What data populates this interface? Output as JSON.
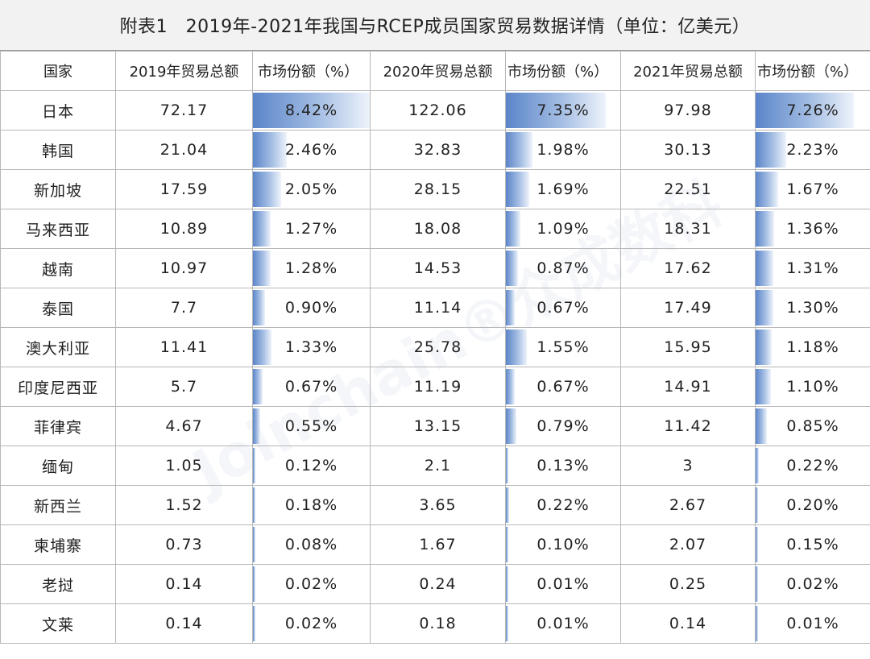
{
  "title": "附表1　2019年-2021年我国与RCEP成员国家贸易数据详情（单位：亿美元）",
  "headers": [
    "国家",
    "2019年贸易总额",
    "市场份额（%）",
    "2020年贸易总额",
    "市场份额（%）",
    "2021年贸易总额",
    "市场份额（%）"
  ],
  "bar_color": "#5b85c9",
  "watermark": "Joinchain®众成数科",
  "rows": [
    {
      "country": "日本",
      "v2019": "72.17",
      "s2019": "8.42%",
      "v2020": "122.06",
      "s2020": "7.35%",
      "v2021": "97.98",
      "s2021": "7.26%"
    },
    {
      "country": "韩国",
      "v2019": "21.04",
      "s2019": "2.46%",
      "v2020": "32.83",
      "s2020": "1.98%",
      "v2021": "30.13",
      "s2021": "2.23%"
    },
    {
      "country": "新加坡",
      "v2019": "17.59",
      "s2019": "2.05%",
      "v2020": "28.15",
      "s2020": "1.69%",
      "v2021": "22.51",
      "s2021": "1.67%"
    },
    {
      "country": "马来西亚",
      "v2019": "10.89",
      "s2019": "1.27%",
      "v2020": "18.08",
      "s2020": "1.09%",
      "v2021": "18.31",
      "s2021": "1.36%"
    },
    {
      "country": "越南",
      "v2019": "10.97",
      "s2019": "1.28%",
      "v2020": "14.53",
      "s2020": "0.87%",
      "v2021": "17.62",
      "s2021": "1.31%"
    },
    {
      "country": "泰国",
      "v2019": "7.7",
      "s2019": "0.90%",
      "v2020": "11.14",
      "s2020": "0.67%",
      "v2021": "17.49",
      "s2021": "1.30%"
    },
    {
      "country": "澳大利亚",
      "v2019": "11.41",
      "s2019": "1.33%",
      "v2020": "25.78",
      "s2020": "1.55%",
      "v2021": "15.95",
      "s2021": "1.18%"
    },
    {
      "country": "印度尼西亚",
      "v2019": "5.7",
      "s2019": "0.67%",
      "v2020": "11.19",
      "s2020": "0.67%",
      "v2021": "14.91",
      "s2021": "1.10%"
    },
    {
      "country": "菲律宾",
      "v2019": "4.67",
      "s2019": "0.55%",
      "v2020": "13.15",
      "s2020": "0.79%",
      "v2021": "11.42",
      "s2021": "0.85%"
    },
    {
      "country": "缅甸",
      "v2019": "1.05",
      "s2019": "0.12%",
      "v2020": "2.1",
      "s2020": "0.13%",
      "v2021": "3",
      "s2021": "0.22%"
    },
    {
      "country": "新西兰",
      "v2019": "1.52",
      "s2019": "0.18%",
      "v2020": "3.65",
      "s2020": "0.22%",
      "v2021": "2.67",
      "s2021": "0.20%"
    },
    {
      "country": "柬埔寨",
      "v2019": "0.73",
      "s2019": "0.08%",
      "v2020": "1.67",
      "s2020": "0.10%",
      "v2021": "2.07",
      "s2021": "0.15%"
    },
    {
      "country": "老挝",
      "v2019": "0.14",
      "s2019": "0.02%",
      "v2020": "0.24",
      "s2020": "0.01%",
      "v2021": "0.25",
      "s2021": "0.02%"
    },
    {
      "country": "文莱",
      "v2019": "0.14",
      "s2019": "0.02%",
      "v2020": "0.18",
      "s2020": "0.01%",
      "v2021": "0.14",
      "s2021": "0.01%"
    }
  ]
}
